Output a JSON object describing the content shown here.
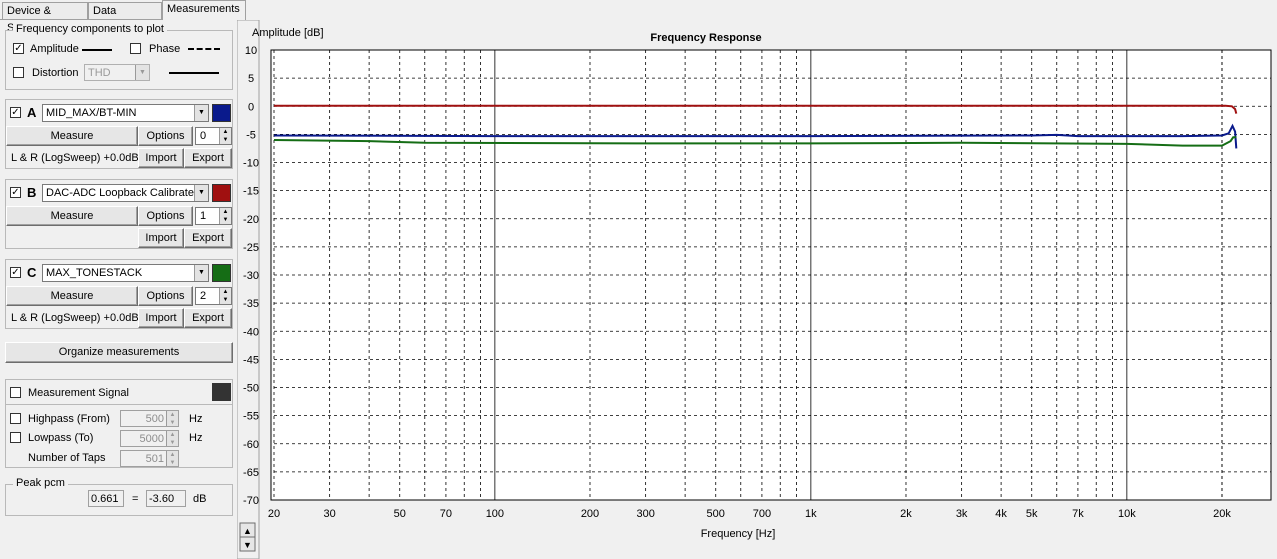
{
  "tabs": [
    "Device & Signal",
    "Data analysis",
    "Measurements"
  ],
  "freq_components": {
    "title": "Frequency components to plot",
    "amplitude_label": "Amplitude",
    "amplitude_checked": true,
    "phase_label": "Phase",
    "phase_checked": false,
    "distortion_label": "Distortion",
    "distortion_checked": false,
    "distortion_type": "THD"
  },
  "slots": [
    {
      "letter": "A",
      "checked": true,
      "name": "MID_MAX/BT-MIN",
      "color": "#0a1a8c",
      "measure_label": "Measure",
      "options_label": "Options",
      "spin_value": "0",
      "info": "L & R (LogSweep) +0.0dB",
      "import_label": "Import",
      "export_label": "Export"
    },
    {
      "letter": "B",
      "checked": true,
      "name": "DAC-ADC Loopback Calibrated",
      "color": "#a01010",
      "measure_label": "Measure",
      "options_label": "Options",
      "spin_value": "1",
      "info": "",
      "import_label": "Import",
      "export_label": "Export"
    },
    {
      "letter": "C",
      "checked": true,
      "name": "MAX_TONESTACK",
      "color": "#156d15",
      "measure_label": "Measure",
      "options_label": "Options",
      "spin_value": "2",
      "info": "L & R (LogSweep) +0.0dB",
      "import_label": "Import",
      "export_label": "Export"
    }
  ],
  "organize_label": "Organize measurements",
  "measurement_signal": {
    "label": "Measurement Signal",
    "checked": false,
    "color": "#333333",
    "highpass_label": "Highpass (From)",
    "highpass_value": "500",
    "lowpass_label": "Lowpass (To)",
    "lowpass_value": "5000",
    "taps_label": "Number of Taps",
    "taps_value": "501",
    "hz_unit": "Hz"
  },
  "peak": {
    "title": "Peak pcm",
    "pcm_value": "0.661",
    "equals": "=",
    "db_value": "-3.60",
    "db_unit": "dB"
  },
  "scroll": {
    "up": "▲",
    "down": "▼"
  },
  "chart_data": {
    "type": "line",
    "title": "Frequency Response",
    "ylabel": "Amplitude [dB]",
    "xlabel": "Frequency [Hz]",
    "x_scale": "log",
    "xlim": [
      20,
      24000
    ],
    "ylim": [
      -70,
      10
    ],
    "grid": true,
    "y_ticks": [
      10,
      5,
      0,
      -5,
      -10,
      -15,
      -20,
      -25,
      -30,
      -35,
      -40,
      -45,
      -50,
      -55,
      -60,
      -65,
      -70
    ],
    "x_ticks": [
      {
        "v": 20,
        "label": "20"
      },
      {
        "v": 30,
        "label": "30"
      },
      {
        "v": 50,
        "label": "50"
      },
      {
        "v": 70,
        "label": "70"
      },
      {
        "v": 100,
        "label": "100"
      },
      {
        "v": 200,
        "label": "200"
      },
      {
        "v": 300,
        "label": "300"
      },
      {
        "v": 500,
        "label": "500"
      },
      {
        "v": 700,
        "label": "700"
      },
      {
        "v": 1000,
        "label": "1k"
      },
      {
        "v": 2000,
        "label": "2k"
      },
      {
        "v": 3000,
        "label": "3k"
      },
      {
        "v": 4000,
        "label": "4k"
      },
      {
        "v": 5000,
        "label": "5k"
      },
      {
        "v": 7000,
        "label": "7k"
      },
      {
        "v": 10000,
        "label": "10k"
      },
      {
        "v": 20000,
        "label": "20k"
      }
    ],
    "series": [
      {
        "color": "#a01010",
        "points": [
          [
            20,
            0.1
          ],
          [
            1000,
            0.1
          ],
          [
            10000,
            0.1
          ],
          [
            20500,
            0.1
          ],
          [
            21500,
            0.0
          ],
          [
            22000,
            -0.5
          ],
          [
            22200,
            -1.3
          ]
        ]
      },
      {
        "color": "#0a1a8c",
        "points": [
          [
            20,
            -5.2
          ],
          [
            100,
            -5.3
          ],
          [
            1000,
            -5.3
          ],
          [
            5000,
            -5.2
          ],
          [
            6000,
            -5.1
          ],
          [
            7000,
            -5.3
          ],
          [
            15000,
            -5.3
          ],
          [
            20000,
            -5.2
          ],
          [
            21000,
            -4.8
          ],
          [
            21600,
            -3.5
          ],
          [
            22000,
            -4.5
          ],
          [
            22200,
            -7.5
          ]
        ]
      },
      {
        "color": "#156d15",
        "points": [
          [
            20,
            -6.0
          ],
          [
            40,
            -6.2
          ],
          [
            60,
            -6.5
          ],
          [
            300,
            -6.6
          ],
          [
            1000,
            -6.6
          ],
          [
            3000,
            -6.5
          ],
          [
            10000,
            -6.7
          ],
          [
            15000,
            -7.0
          ],
          [
            20000,
            -7.0
          ],
          [
            21300,
            -6.2
          ],
          [
            21700,
            -5.5
          ],
          [
            22200,
            -5.5
          ]
        ]
      }
    ]
  }
}
